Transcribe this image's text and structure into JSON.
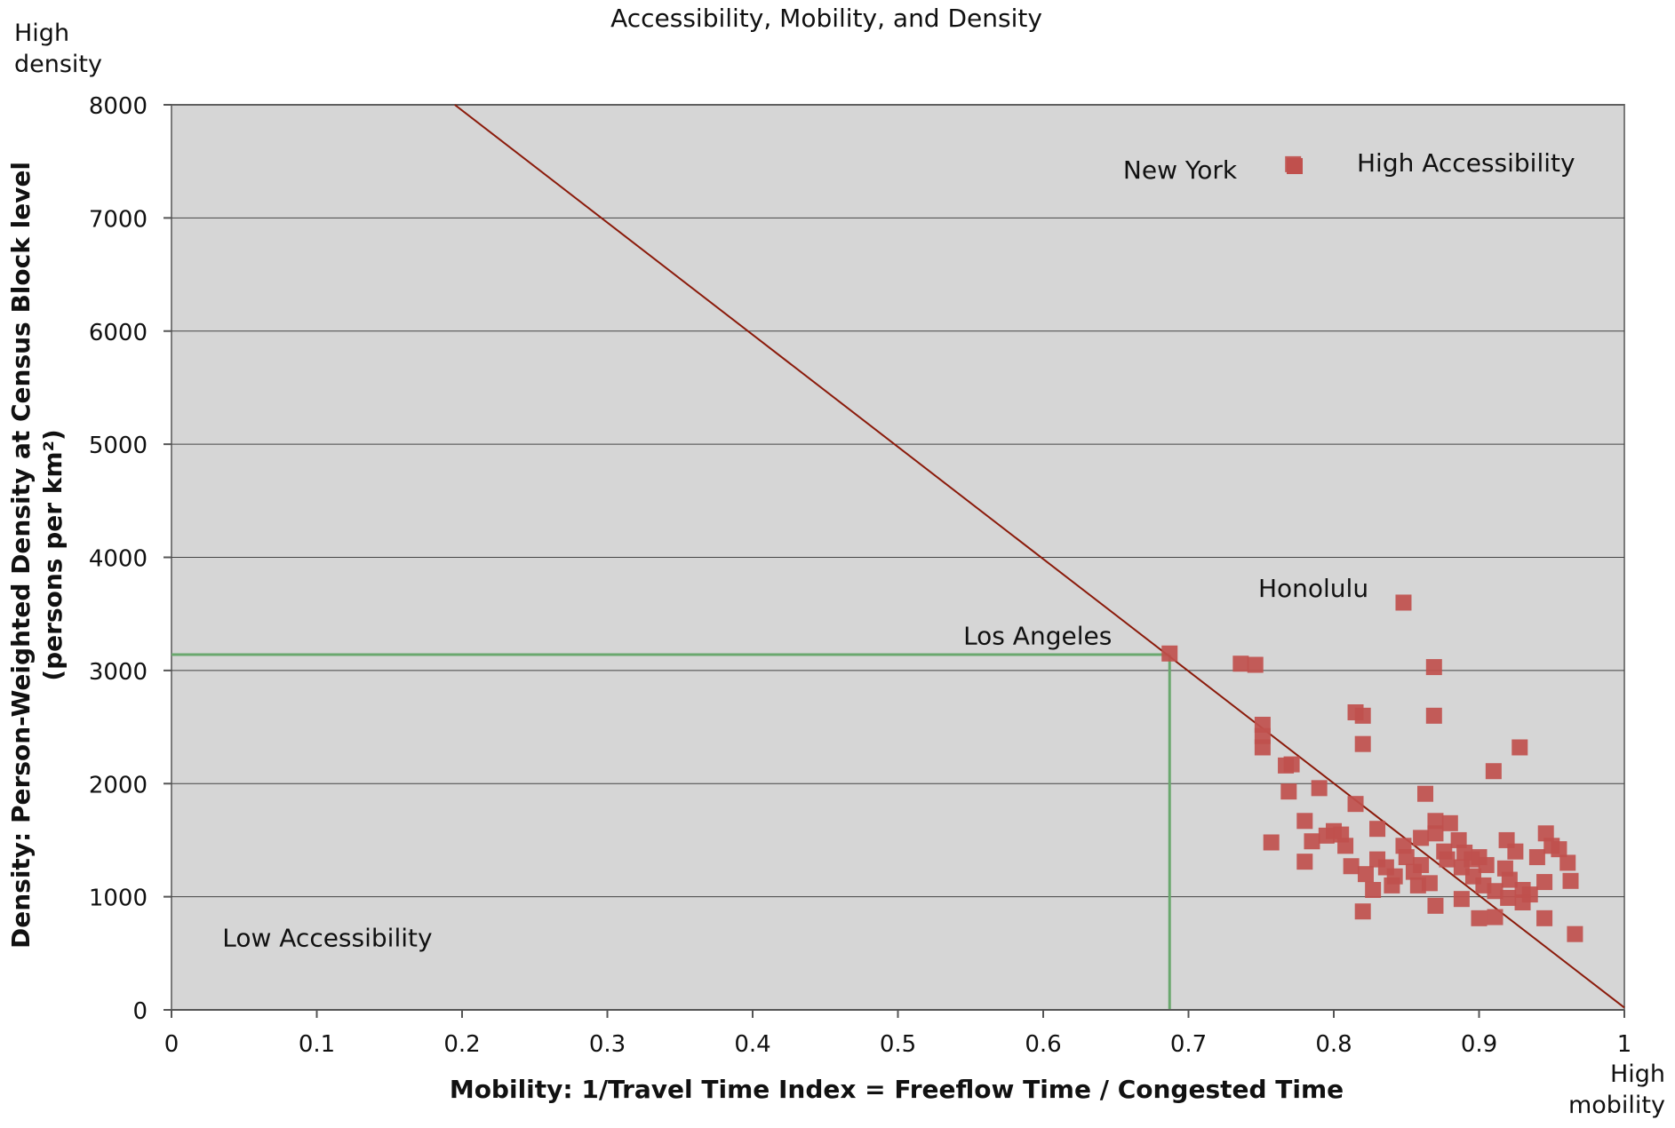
{
  "chart_data": {
    "type": "scatter",
    "title": "Accessibility, Mobility, and Density",
    "xlabel": "Mobility: 1/Travel Time Index = Freeflow Time / Congested Time",
    "ylabel_line1": "Density: Person-Weighted Density at Census Block level",
    "ylabel_line2": "(persons per km²)",
    "corner_y_line1": "High",
    "corner_y_line2": "density",
    "corner_x_line1": "High",
    "corner_x_line2": "mobility",
    "xlim": [
      0,
      1
    ],
    "ylim": [
      0,
      8000
    ],
    "x_ticks": [
      "0",
      "0.1",
      "0.2",
      "0.3",
      "0.4",
      "0.5",
      "0.6",
      "0.7",
      "0.8",
      "0.9",
      "1"
    ],
    "y_ticks": [
      "0",
      "1000",
      "2000",
      "3000",
      "4000",
      "5000",
      "6000",
      "7000",
      "8000"
    ],
    "grid": "horizontal",
    "legend": "top-right",
    "colors": {
      "plot_bg": "#d6d6d6",
      "marker": "#c0504d",
      "trend_line": "#8b1a0a",
      "reference_line": "#6aa86e",
      "grid": "#444444"
    },
    "series": [
      {
        "name": "High Accessibility",
        "marker": "square",
        "points": [
          [
            0.772,
            7475
          ],
          [
            0.687,
            3150
          ],
          [
            0.848,
            3600
          ],
          [
            0.736,
            3060
          ],
          [
            0.746,
            3050
          ],
          [
            0.869,
            3030
          ],
          [
            0.751,
            2520
          ],
          [
            0.751,
            2420
          ],
          [
            0.751,
            2320
          ],
          [
            0.767,
            2160
          ],
          [
            0.771,
            2170
          ],
          [
            0.769,
            1930
          ],
          [
            0.815,
            2630
          ],
          [
            0.82,
            2600
          ],
          [
            0.869,
            2600
          ],
          [
            0.82,
            2350
          ],
          [
            0.928,
            2320
          ],
          [
            0.91,
            2110
          ],
          [
            0.79,
            1960
          ],
          [
            0.815,
            1820
          ],
          [
            0.863,
            1910
          ],
          [
            0.78,
            1670
          ],
          [
            0.87,
            1670
          ],
          [
            0.88,
            1650
          ],
          [
            0.757,
            1480
          ],
          [
            0.785,
            1490
          ],
          [
            0.795,
            1540
          ],
          [
            0.8,
            1580
          ],
          [
            0.805,
            1550
          ],
          [
            0.808,
            1450
          ],
          [
            0.83,
            1600
          ],
          [
            0.848,
            1450
          ],
          [
            0.86,
            1520
          ],
          [
            0.87,
            1560
          ],
          [
            0.876,
            1400
          ],
          [
            0.886,
            1500
          ],
          [
            0.89,
            1390
          ],
          [
            0.895,
            1330
          ],
          [
            0.9,
            1350
          ],
          [
            0.905,
            1280
          ],
          [
            0.919,
            1500
          ],
          [
            0.925,
            1400
          ],
          [
            0.94,
            1350
          ],
          [
            0.946,
            1560
          ],
          [
            0.95,
            1450
          ],
          [
            0.955,
            1420
          ],
          [
            0.961,
            1300
          ],
          [
            0.78,
            1310
          ],
          [
            0.812,
            1270
          ],
          [
            0.822,
            1200
          ],
          [
            0.83,
            1330
          ],
          [
            0.836,
            1260
          ],
          [
            0.842,
            1180
          ],
          [
            0.85,
            1350
          ],
          [
            0.855,
            1220
          ],
          [
            0.86,
            1280
          ],
          [
            0.866,
            1120
          ],
          [
            0.878,
            1330
          ],
          [
            0.888,
            1260
          ],
          [
            0.896,
            1180
          ],
          [
            0.903,
            1100
          ],
          [
            0.911,
            1050
          ],
          [
            0.918,
            1250
          ],
          [
            0.921,
            1150
          ],
          [
            0.93,
            1060
          ],
          [
            0.935,
            1020
          ],
          [
            0.945,
            1130
          ],
          [
            0.827,
            1060
          ],
          [
            0.84,
            1100
          ],
          [
            0.858,
            1100
          ],
          [
            0.888,
            980
          ],
          [
            0.87,
            920
          ],
          [
            0.9,
            810
          ],
          [
            0.911,
            820
          ],
          [
            0.92,
            990
          ],
          [
            0.93,
            950
          ],
          [
            0.945,
            810
          ],
          [
            0.963,
            1140
          ],
          [
            0.966,
            670
          ],
          [
            0.82,
            870
          ]
        ]
      }
    ],
    "trend_line": [
      [
        0.195,
        8000
      ],
      [
        1.0,
        20
      ]
    ],
    "reference_lines": {
      "los_angeles_x": 0.687,
      "los_angeles_y": 3140
    },
    "annotations": [
      {
        "text": "New York",
        "x": 0.655,
        "y": 7350
      },
      {
        "text": "Los Angeles",
        "x": 0.545,
        "y": 3230
      },
      {
        "text": "Honolulu",
        "x": 0.748,
        "y": 3650
      },
      {
        "text": "Low Accessibility",
        "x": 0.035,
        "y": 560
      }
    ]
  }
}
